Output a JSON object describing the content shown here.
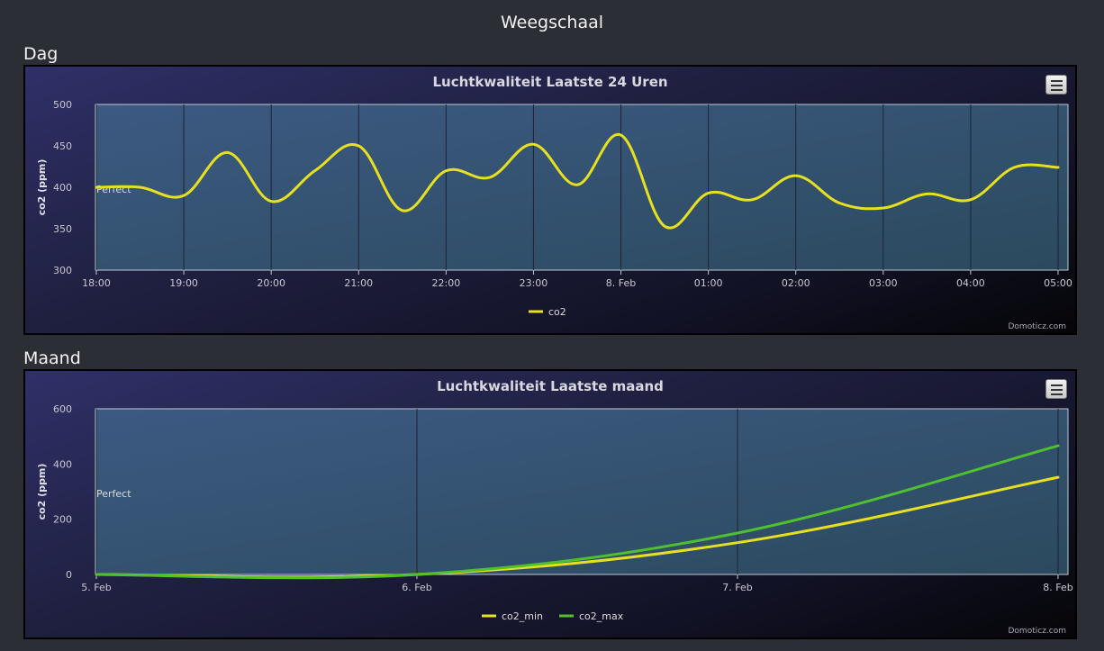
{
  "page": {
    "title": "Weegschaal"
  },
  "sections": [
    {
      "heading": "Dag"
    },
    {
      "heading": "Maand"
    }
  ],
  "credit": "Domoticz.com",
  "colors": {
    "co2": "#e6e020",
    "co2_min": "#e6e020",
    "co2_max": "#4fc030",
    "plot_bg_top": "#3c5a82",
    "plot_bg_bottom": "#2b4a5e",
    "grid": "#1c2433"
  },
  "chart_data": [
    {
      "type": "line",
      "title": "Luchtkwaliteit Laatste 24 Uren",
      "ylabel": "co2 (ppm)",
      "xlabel": "",
      "ylim": [
        300,
        500
      ],
      "yticks": [
        "300",
        "350",
        "400",
        "450",
        "500"
      ],
      "x_tick_labels": [
        "18:00",
        "19:00",
        "20:00",
        "21:00",
        "22:00",
        "23:00",
        "8. Feb",
        "01:00",
        "02:00",
        "03:00",
        "04:00",
        "05:00"
      ],
      "x_range_hours": [
        0,
        11
      ],
      "annotation": "Perfect",
      "grid": "vertical",
      "legend": "bottom-center",
      "series": [
        {
          "name": "co2",
          "x_hours": [
            0,
            0.5,
            1,
            1.5,
            2,
            2.5,
            3,
            3.5,
            4,
            4.5,
            5,
            5.5,
            6,
            6.5,
            7,
            7.5,
            8,
            8.5,
            9,
            9.5,
            10,
            10.5,
            11
          ],
          "values": [
            400,
            400,
            390,
            442,
            383,
            420,
            450,
            372,
            420,
            412,
            452,
            403,
            463,
            353,
            393,
            385,
            414,
            381,
            375,
            392,
            385,
            424,
            424
          ]
        }
      ]
    },
    {
      "type": "line",
      "title": "Luchtkwaliteit Laatste maand",
      "ylabel": "co2 (ppm)",
      "xlabel": "",
      "ylim": [
        0,
        600
      ],
      "yticks": [
        "0",
        "200",
        "400",
        "600"
      ],
      "x_tick_labels": [
        "5. Feb",
        "6. Feb",
        "7. Feb",
        "8. Feb"
      ],
      "annotation": "Perfect",
      "grid": "vertical",
      "legend": "bottom-center",
      "series": [
        {
          "name": "co2_min",
          "x_dates": [
            "5. Feb",
            "6. Feb",
            "7. Feb",
            "8. Feb"
          ],
          "values": [
            0,
            0,
            115,
            352
          ]
        },
        {
          "name": "co2_max",
          "x_dates": [
            "5. Feb",
            "6. Feb",
            "7. Feb",
            "8. Feb"
          ],
          "values": [
            0,
            0,
            150,
            466
          ]
        }
      ]
    }
  ]
}
